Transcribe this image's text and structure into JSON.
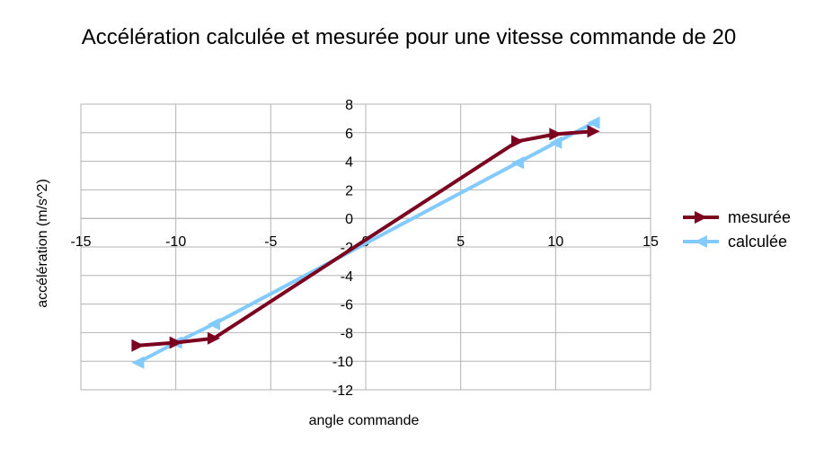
{
  "chart_data": {
    "type": "line",
    "title": "Accélération calculée et mesurée pour une vitesse commande de 20",
    "xlabel": "angle commande",
    "ylabel": "accélération (m/s^2)",
    "xlim": [
      -15,
      15
    ],
    "ylim": [
      -12,
      8
    ],
    "x_ticks": [
      -15,
      -10,
      -5,
      0,
      5,
      10,
      15
    ],
    "y_ticks": [
      -12,
      -10,
      -8,
      -6,
      -4,
      -2,
      0,
      2,
      4,
      6,
      8
    ],
    "grid": true,
    "legend_position": "right",
    "series": [
      {
        "name": "mesurée",
        "color": "#7b0020",
        "marker": "triangle-right",
        "x": [
          -12,
          -10,
          -8,
          8,
          10,
          12
        ],
        "y": [
          -8.9,
          -8.7,
          -8.4,
          5.4,
          5.9,
          6.1
        ]
      },
      {
        "name": "calculée",
        "color": "#83caff",
        "marker": "triangle-left",
        "x": [
          -12,
          -10,
          -8,
          8,
          10,
          12
        ],
        "y": [
          -10.1,
          -8.7,
          -7.4,
          3.9,
          5.3,
          6.7
        ]
      }
    ]
  }
}
